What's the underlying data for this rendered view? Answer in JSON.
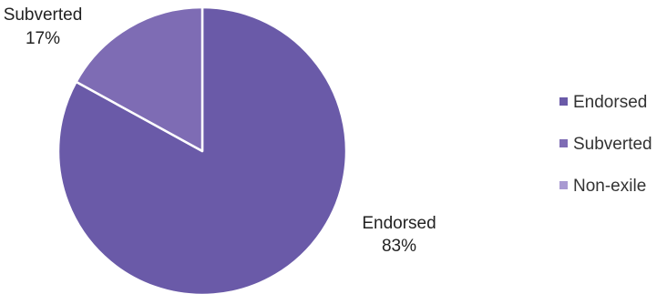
{
  "chart_data": {
    "type": "pie",
    "title": "",
    "slices": [
      {
        "label": "Endorsed",
        "value": 83,
        "value_label": "83%",
        "color": "#6a5aa8"
      },
      {
        "label": "Subverted",
        "value": 17,
        "value_label": "17%",
        "color": "#7e6cb4"
      },
      {
        "label": "Non-exile",
        "value": 0,
        "value_label": "",
        "color": "#a99ad2"
      }
    ],
    "legend": {
      "placement": "right",
      "entries": [
        "Endorsed",
        "Subverted",
        "Non-exile"
      ]
    }
  }
}
